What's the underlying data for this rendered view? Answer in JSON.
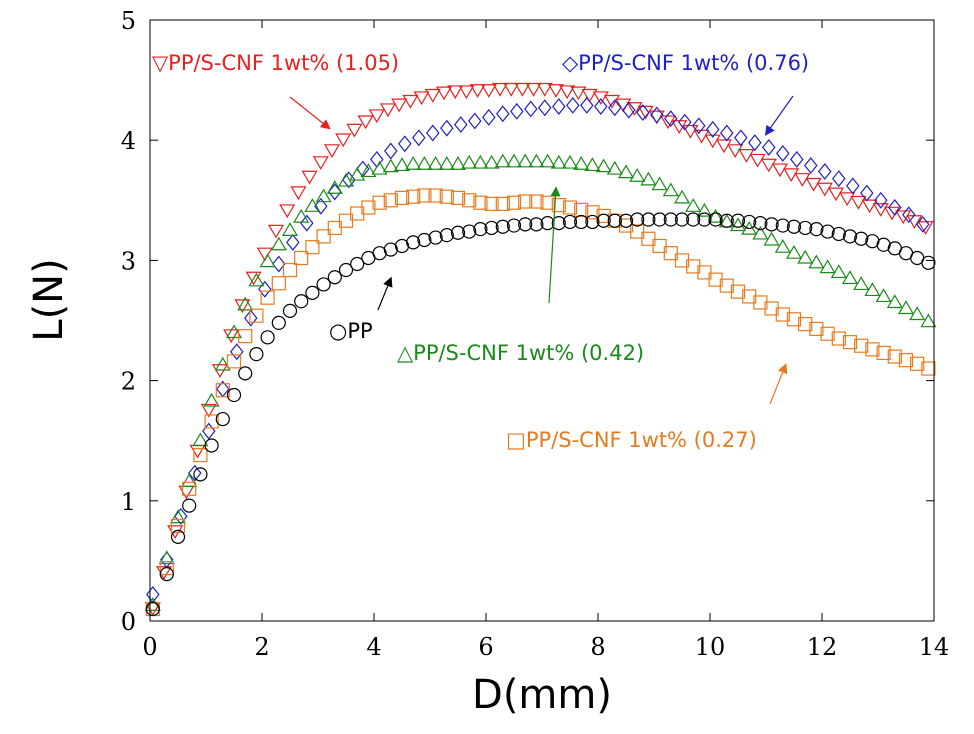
{
  "chart_data": {
    "type": "scatter",
    "xlabel": "D(mm)",
    "ylabel": "L(N)",
    "xlim": [
      0,
      14
    ],
    "ylim": [
      0,
      5
    ],
    "x_ticks": [
      "0",
      "2",
      "4",
      "6",
      "8",
      "10",
      "12",
      "14"
    ],
    "y_ticks": [
      "0",
      "1",
      "2",
      "3",
      "4",
      "5"
    ],
    "grid": false,
    "legend": "none",
    "series": [
      {
        "name": "PP/S-CNF 1wt% (1.05)",
        "marker": "triangle-down",
        "color": "#e8201e",
        "x": [
          0.05,
          0.25,
          0.45,
          0.65,
          0.85,
          1.05,
          1.25,
          1.45,
          1.65,
          1.85,
          2.05,
          2.25,
          2.45,
          2.65,
          2.85,
          3.05,
          3.25,
          3.45,
          3.65,
          3.85,
          4.05,
          4.25,
          4.45,
          4.65,
          4.85,
          5.05,
          5.25,
          5.45,
          5.65,
          5.85,
          6.05,
          6.25,
          6.45,
          6.65,
          6.85,
          7.05,
          7.25,
          7.45,
          7.65,
          7.85,
          8.05,
          8.25,
          8.45,
          8.65,
          8.85,
          9.05,
          9.25,
          9.45,
          9.65,
          9.85,
          10.05,
          10.25,
          10.45,
          10.65,
          10.85,
          11.05,
          11.25,
          11.45,
          11.65,
          11.85,
          12.05,
          12.25,
          12.45,
          12.65,
          12.85,
          13.05,
          13.25,
          13.45,
          13.65,
          13.85
        ],
        "y": [
          0.11,
          0.41,
          0.75,
          1.08,
          1.42,
          1.76,
          2.09,
          2.38,
          2.63,
          2.86,
          3.06,
          3.25,
          3.42,
          3.57,
          3.7,
          3.82,
          3.92,
          4.01,
          4.09,
          4.16,
          4.21,
          4.26,
          4.3,
          4.33,
          4.36,
          4.38,
          4.4,
          4.41,
          4.41,
          4.42,
          4.42,
          4.43,
          4.43,
          4.43,
          4.43,
          4.43,
          4.42,
          4.41,
          4.4,
          4.38,
          4.36,
          4.33,
          4.3,
          4.27,
          4.24,
          4.2,
          4.16,
          4.12,
          4.08,
          4.04,
          4.0,
          3.96,
          3.92,
          3.88,
          3.84,
          3.8,
          3.76,
          3.72,
          3.68,
          3.64,
          3.6,
          3.56,
          3.52,
          3.49,
          3.46,
          3.43,
          3.4,
          3.37,
          3.33,
          3.28
        ]
      },
      {
        "name": "PP/S-CNF 1wt% (0.76)",
        "marker": "diamond",
        "color": "#1f1fc8",
        "x": [
          0.05,
          0.3,
          0.55,
          0.8,
          1.05,
          1.3,
          1.55,
          1.8,
          2.05,
          2.3,
          2.55,
          2.8,
          3.05,
          3.3,
          3.55,
          3.8,
          4.05,
          4.3,
          4.55,
          4.8,
          5.05,
          5.3,
          5.55,
          5.8,
          6.05,
          6.3,
          6.55,
          6.8,
          7.05,
          7.3,
          7.55,
          7.8,
          8.05,
          8.3,
          8.55,
          8.8,
          9.05,
          9.3,
          9.55,
          9.8,
          10.05,
          10.3,
          10.55,
          10.8,
          11.05,
          11.3,
          11.55,
          11.8,
          12.05,
          12.3,
          12.55,
          12.8,
          13.05,
          13.3,
          13.55,
          13.8
        ],
        "y": [
          0.22,
          0.51,
          0.87,
          1.23,
          1.58,
          1.93,
          2.24,
          2.52,
          2.76,
          2.97,
          3.15,
          3.31,
          3.45,
          3.57,
          3.67,
          3.76,
          3.84,
          3.91,
          3.97,
          4.02,
          4.06,
          4.1,
          4.13,
          4.16,
          4.19,
          4.22,
          4.24,
          4.26,
          4.27,
          4.28,
          4.29,
          4.29,
          4.28,
          4.27,
          4.25,
          4.23,
          4.21,
          4.18,
          4.15,
          4.12,
          4.09,
          4.06,
          4.02,
          3.98,
          3.94,
          3.89,
          3.84,
          3.79,
          3.74,
          3.68,
          3.62,
          3.56,
          3.5,
          3.44,
          3.38,
          3.3
        ]
      },
      {
        "name": "PP/S-CNF 1wt% (0.42)",
        "marker": "triangle-up",
        "color": "#1a8a1a",
        "x": [
          0.05,
          0.3,
          0.5,
          0.7,
          0.9,
          1.1,
          1.3,
          1.5,
          1.7,
          1.9,
          2.1,
          2.3,
          2.5,
          2.7,
          2.9,
          3.1,
          3.3,
          3.5,
          3.7,
          3.9,
          4.1,
          4.3,
          4.5,
          4.7,
          4.9,
          5.1,
          5.3,
          5.5,
          5.7,
          5.9,
          6.1,
          6.3,
          6.5,
          6.7,
          6.9,
          7.1,
          7.3,
          7.5,
          7.7,
          7.9,
          8.1,
          8.3,
          8.5,
          8.7,
          8.9,
          9.1,
          9.3,
          9.5,
          9.7,
          9.9,
          10.1,
          10.3,
          10.5,
          10.7,
          10.9,
          11.1,
          11.3,
          11.5,
          11.7,
          11.9,
          12.1,
          12.3,
          12.5,
          12.7,
          12.9,
          13.1,
          13.3,
          13.5,
          13.7,
          13.9
        ],
        "y": [
          0.13,
          0.52,
          0.86,
          1.16,
          1.5,
          1.83,
          2.13,
          2.4,
          2.63,
          2.83,
          2.99,
          3.13,
          3.25,
          3.36,
          3.45,
          3.53,
          3.6,
          3.66,
          3.71,
          3.74,
          3.76,
          3.78,
          3.79,
          3.8,
          3.8,
          3.8,
          3.8,
          3.8,
          3.81,
          3.81,
          3.81,
          3.82,
          3.82,
          3.82,
          3.82,
          3.82,
          3.81,
          3.81,
          3.8,
          3.79,
          3.78,
          3.76,
          3.73,
          3.7,
          3.67,
          3.63,
          3.58,
          3.52,
          3.45,
          3.41,
          3.36,
          3.32,
          3.29,
          3.26,
          3.22,
          3.17,
          3.11,
          3.06,
          3.02,
          2.98,
          2.94,
          2.9,
          2.85,
          2.8,
          2.75,
          2.7,
          2.65,
          2.6,
          2.55,
          2.49
        ]
      },
      {
        "name": "PP/S-CNF 1wt% (0.27)",
        "marker": "square",
        "color": "#e87a1e",
        "x": [
          0.05,
          0.3,
          0.5,
          0.7,
          0.9,
          1.1,
          1.3,
          1.5,
          1.7,
          1.9,
          2.1,
          2.3,
          2.5,
          2.7,
          2.9,
          3.1,
          3.3,
          3.5,
          3.7,
          3.9,
          4.1,
          4.3,
          4.5,
          4.7,
          4.9,
          5.1,
          5.3,
          5.5,
          5.7,
          5.9,
          6.1,
          6.3,
          6.5,
          6.7,
          6.9,
          7.1,
          7.3,
          7.5,
          7.7,
          7.9,
          8.1,
          8.3,
          8.5,
          8.7,
          8.9,
          9.1,
          9.3,
          9.5,
          9.7,
          9.9,
          10.1,
          10.3,
          10.5,
          10.7,
          10.9,
          11.1,
          11.3,
          11.5,
          11.7,
          11.9,
          12.1,
          12.3,
          12.5,
          12.7,
          12.9,
          13.1,
          13.3,
          13.5,
          13.7,
          13.9
        ],
        "y": [
          0.1,
          0.44,
          0.79,
          1.1,
          1.38,
          1.66,
          1.92,
          2.16,
          2.37,
          2.54,
          2.69,
          2.81,
          2.92,
          3.02,
          3.11,
          3.2,
          3.27,
          3.33,
          3.39,
          3.44,
          3.48,
          3.5,
          3.52,
          3.53,
          3.54,
          3.54,
          3.53,
          3.52,
          3.5,
          3.48,
          3.47,
          3.47,
          3.48,
          3.49,
          3.49,
          3.48,
          3.46,
          3.44,
          3.42,
          3.4,
          3.37,
          3.33,
          3.29,
          3.24,
          3.18,
          3.12,
          3.06,
          3.0,
          2.95,
          2.9,
          2.84,
          2.79,
          2.74,
          2.7,
          2.65,
          2.6,
          2.55,
          2.51,
          2.47,
          2.43,
          2.39,
          2.35,
          2.32,
          2.29,
          2.26,
          2.23,
          2.2,
          2.17,
          2.14,
          2.1
        ]
      },
      {
        "name": "PP",
        "marker": "circle",
        "color": "#000000",
        "x": [
          0.05,
          0.3,
          0.5,
          0.7,
          0.9,
          1.1,
          1.3,
          1.5,
          1.7,
          1.9,
          2.1,
          2.3,
          2.5,
          2.7,
          2.9,
          3.1,
          3.3,
          3.5,
          3.7,
          3.9,
          4.1,
          4.3,
          4.5,
          4.7,
          4.9,
          5.1,
          5.3,
          5.5,
          5.7,
          5.9,
          6.1,
          6.3,
          6.5,
          6.7,
          6.9,
          7.1,
          7.3,
          7.5,
          7.7,
          7.9,
          8.1,
          8.3,
          8.5,
          8.7,
          8.9,
          9.1,
          9.3,
          9.5,
          9.7,
          9.9,
          10.1,
          10.3,
          10.5,
          10.7,
          10.9,
          11.1,
          11.3,
          11.5,
          11.7,
          11.9,
          12.1,
          12.3,
          12.5,
          12.7,
          12.9,
          13.1,
          13.3,
          13.5,
          13.7,
          13.9
        ],
        "y": [
          0.1,
          0.39,
          0.7,
          0.96,
          1.22,
          1.46,
          1.68,
          1.88,
          2.06,
          2.22,
          2.36,
          2.48,
          2.58,
          2.66,
          2.73,
          2.8,
          2.86,
          2.92,
          2.97,
          3.02,
          3.06,
          3.09,
          3.12,
          3.15,
          3.17,
          3.19,
          3.21,
          3.23,
          3.24,
          3.26,
          3.27,
          3.28,
          3.29,
          3.3,
          3.3,
          3.31,
          3.31,
          3.32,
          3.32,
          3.32,
          3.33,
          3.33,
          3.33,
          3.34,
          3.34,
          3.34,
          3.34,
          3.34,
          3.34,
          3.34,
          3.34,
          3.33,
          3.33,
          3.32,
          3.31,
          3.3,
          3.29,
          3.28,
          3.27,
          3.26,
          3.24,
          3.22,
          3.2,
          3.18,
          3.16,
          3.13,
          3.1,
          3.06,
          3.02,
          2.98
        ]
      }
    ],
    "annotations": [
      {
        "text": "▽PP/S-CNF 1wt% (1.05)",
        "color": "#e8201e",
        "arrow_to": [
          3.2,
          4.1
        ]
      },
      {
        "text": "◇PP/S-CNF 1wt% (0.76)",
        "color": "#1f1fc8",
        "arrow_to": [
          11.0,
          4.05
        ]
      },
      {
        "text": "○PP",
        "color": "#000000",
        "arrow_to": [
          4.3,
          2.85
        ]
      },
      {
        "text": "△PP/S-CNF 1wt% (0.42)",
        "color": "#1a8a1a",
        "arrow_to": [
          7.25,
          3.6
        ]
      },
      {
        "text": "□PP/S-CNF 1wt% (0.27)",
        "color": "#e87a1e",
        "arrow_to": [
          11.35,
          2.13
        ]
      }
    ]
  }
}
